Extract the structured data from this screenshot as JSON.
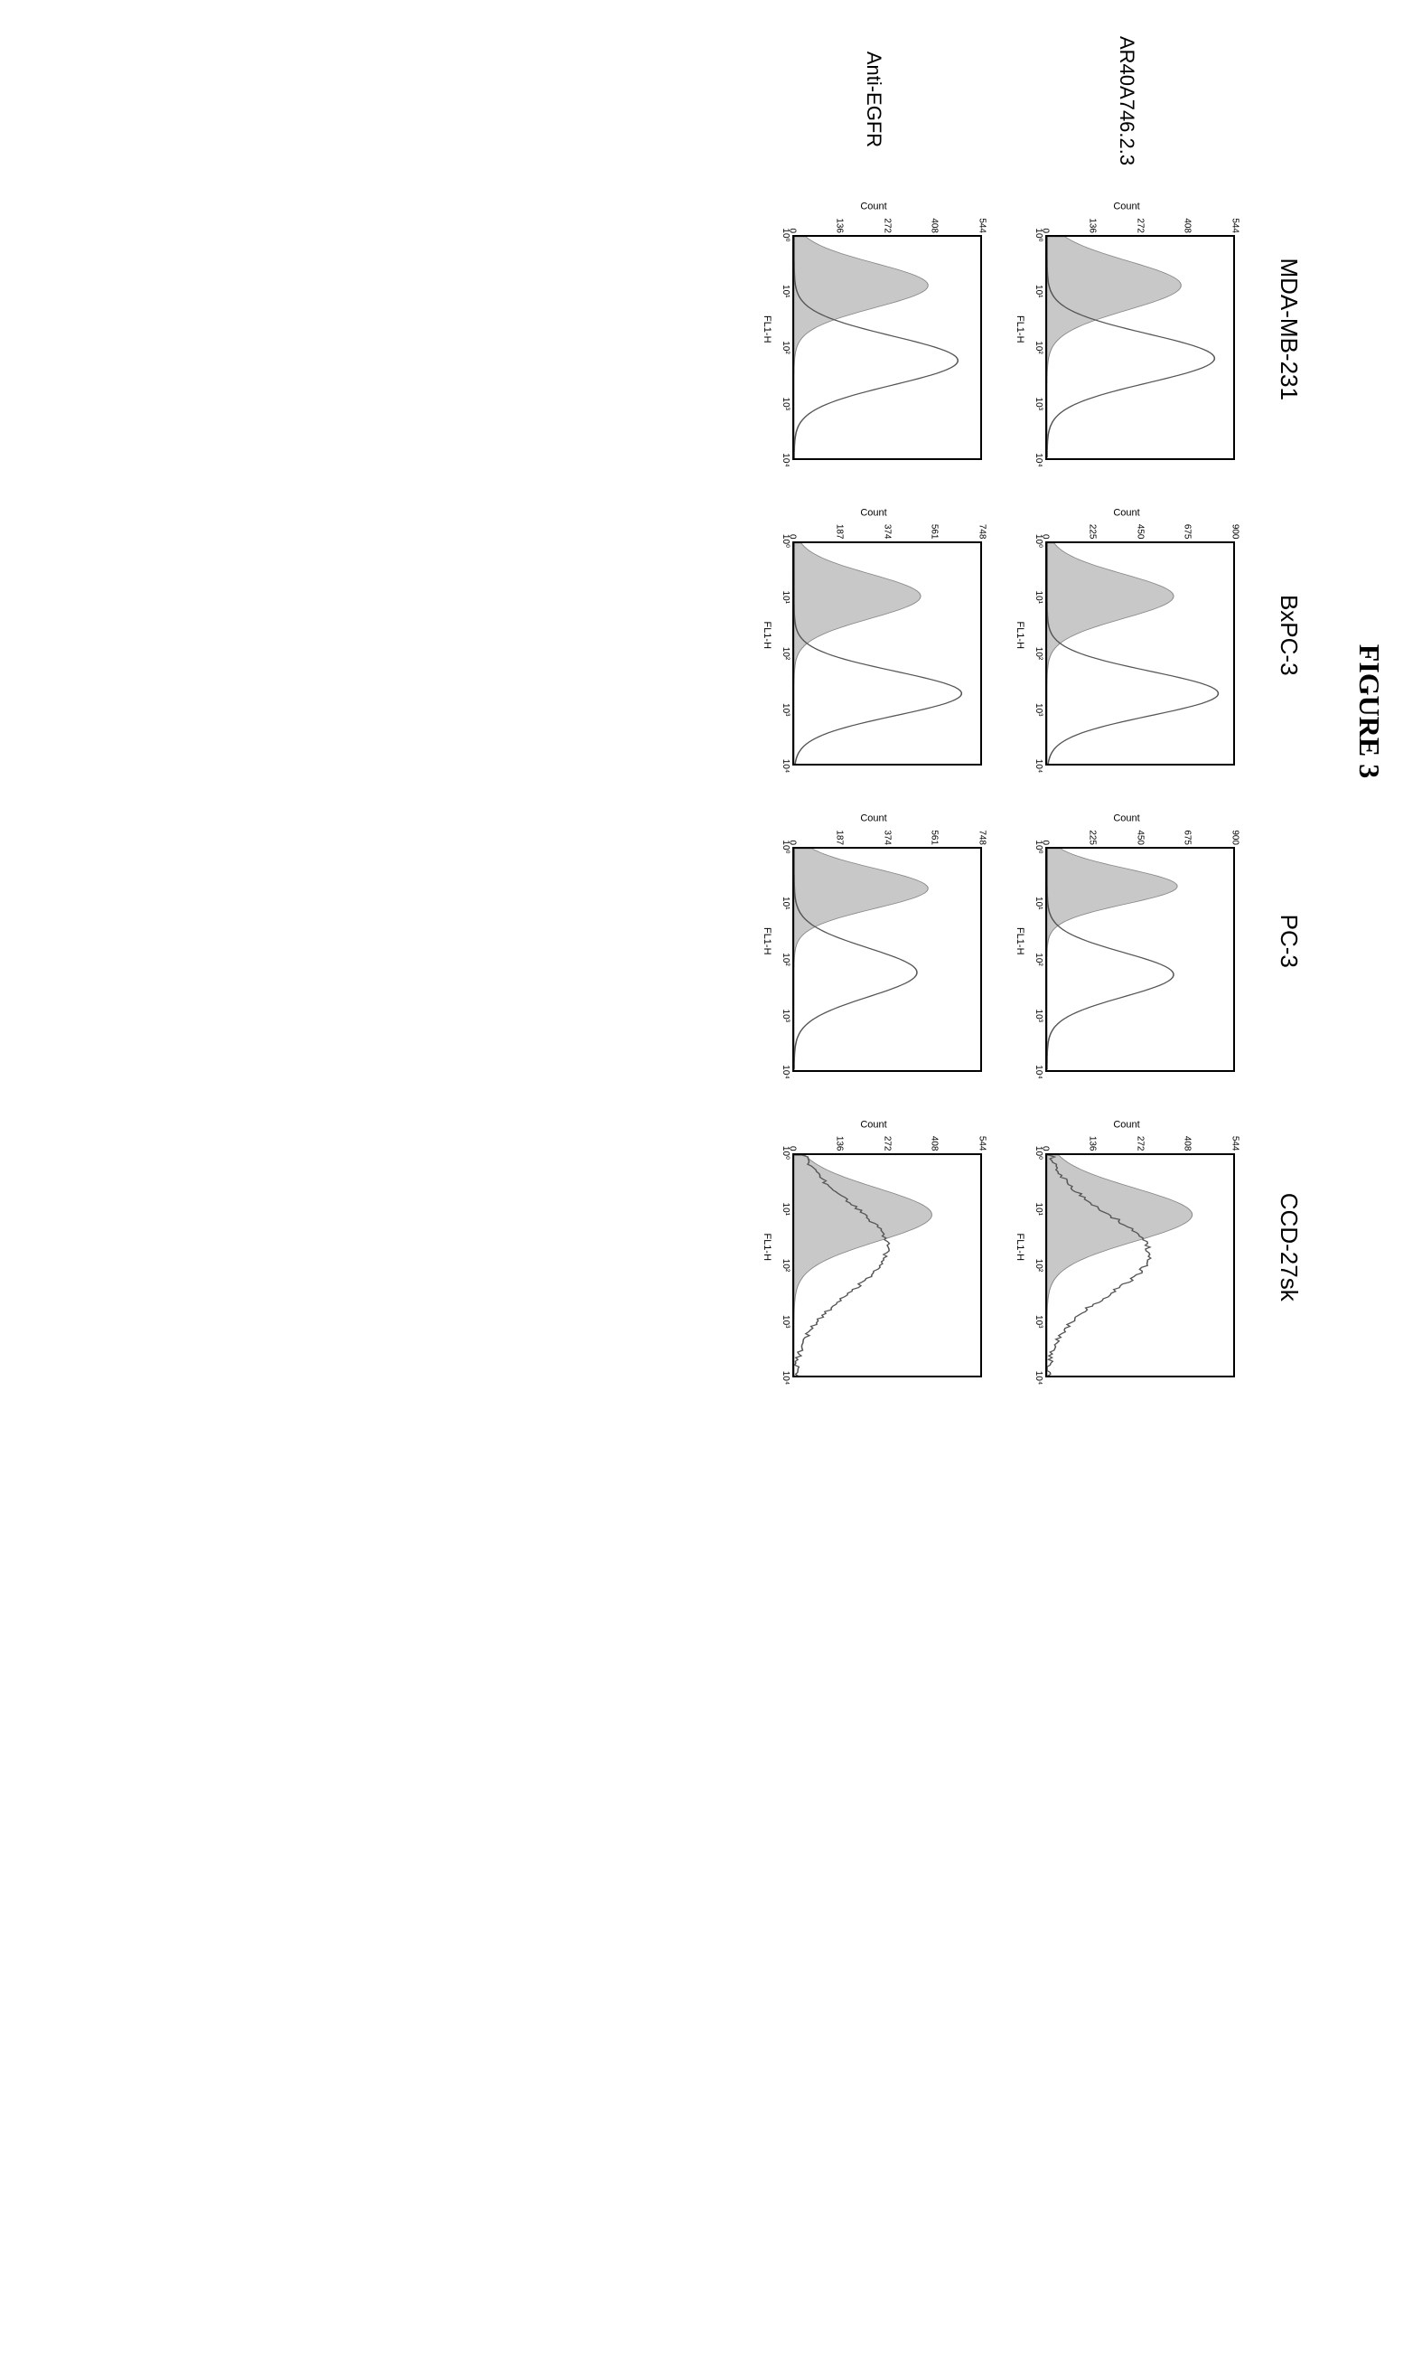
{
  "figure_title": "FIGURE 3",
  "columns": [
    "MDA-MB-231",
    "BxPC-3",
    "PC-3",
    "CCD-27sk"
  ],
  "rows": [
    "AR40A746.2.3",
    "Anti-EGFR"
  ],
  "axis_labels": {
    "x": "FL1-H",
    "y": "Count"
  },
  "xtick_labels": [
    "10⁰",
    "10¹",
    "10²",
    "10³",
    "10⁴"
  ],
  "colors": {
    "background": "#ffffff",
    "axis": "#000000",
    "control_fill": "#c8c8c8",
    "control_stroke": "#888888",
    "sample_stroke": "#555555"
  },
  "plots": [
    {
      "row": 0,
      "col": 0,
      "ymax": 544,
      "yticks": [
        0,
        136,
        272,
        408,
        544
      ],
      "control": {
        "peak_x": 0.22,
        "peak_h": 0.72,
        "spread": 0.11
      },
      "sample": {
        "peak_x": 0.55,
        "peak_h": 0.9,
        "spread": 0.11
      }
    },
    {
      "row": 0,
      "col": 1,
      "ymax": 900,
      "yticks": [
        0,
        225,
        450,
        675,
        900
      ],
      "control": {
        "peak_x": 0.24,
        "peak_h": 0.68,
        "spread": 0.1
      },
      "sample": {
        "peak_x": 0.68,
        "peak_h": 0.92,
        "spread": 0.1
      }
    },
    {
      "row": 0,
      "col": 2,
      "ymax": 900,
      "yticks": [
        0,
        225,
        450,
        675,
        900
      ],
      "control": {
        "peak_x": 0.17,
        "peak_h": 0.7,
        "spread": 0.08
      },
      "sample": {
        "peak_x": 0.57,
        "peak_h": 0.68,
        "spread": 0.1
      }
    },
    {
      "row": 0,
      "col": 3,
      "ymax": 544,
      "yticks": [
        0,
        136,
        272,
        408,
        544
      ],
      "control": {
        "peak_x": 0.27,
        "peak_h": 0.78,
        "spread": 0.12
      },
      "sample": {
        "peak_x": 0.45,
        "peak_h": 0.55,
        "spread": 0.18,
        "noisy": true
      }
    },
    {
      "row": 1,
      "col": 0,
      "ymax": 544,
      "yticks": [
        0,
        136,
        272,
        408,
        544
      ],
      "control": {
        "peak_x": 0.22,
        "peak_h": 0.72,
        "spread": 0.1
      },
      "sample": {
        "peak_x": 0.56,
        "peak_h": 0.88,
        "spread": 0.11
      }
    },
    {
      "row": 1,
      "col": 1,
      "ymax": 748,
      "yticks": [
        0,
        187,
        374,
        561,
        748
      ],
      "control": {
        "peak_x": 0.24,
        "peak_h": 0.68,
        "spread": 0.1
      },
      "sample": {
        "peak_x": 0.68,
        "peak_h": 0.9,
        "spread": 0.1
      }
    },
    {
      "row": 1,
      "col": 2,
      "ymax": 748,
      "yticks": [
        0,
        187,
        374,
        561,
        748
      ],
      "control": {
        "peak_x": 0.18,
        "peak_h": 0.72,
        "spread": 0.09
      },
      "sample": {
        "peak_x": 0.56,
        "peak_h": 0.66,
        "spread": 0.11
      }
    },
    {
      "row": 1,
      "col": 3,
      "ymax": 544,
      "yticks": [
        0,
        136,
        272,
        408,
        544
      ],
      "control": {
        "peak_x": 0.27,
        "peak_h": 0.74,
        "spread": 0.12
      },
      "sample": {
        "peak_x": 0.42,
        "peak_h": 0.5,
        "spread": 0.2,
        "noisy": true
      }
    }
  ]
}
